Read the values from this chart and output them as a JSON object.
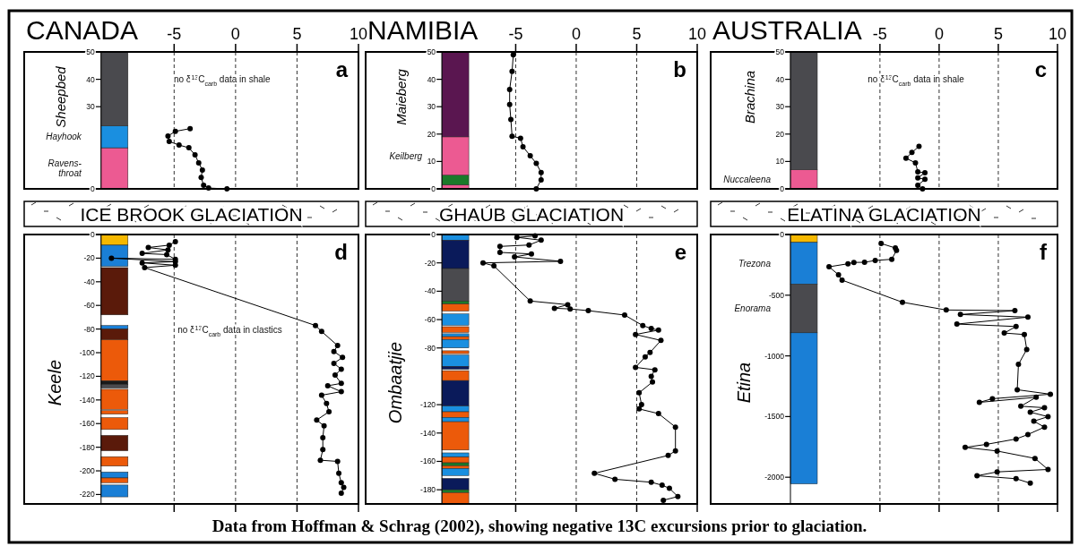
{
  "chart_data": [
    {
      "type": "line",
      "title": "CANADA",
      "ylabel": "Sheepbed",
      "xlim": [
        -17.2,
        10
      ],
      "ylim": [
        0,
        50
      ],
      "xticks": [
        -5,
        0,
        5,
        10
      ],
      "yticks": [
        0,
        30,
        40,
        50
      ],
      "grid": "x",
      "marker": "circle",
      "line_style": "solid",
      "series": [
        {
          "color": "#000000",
          "x": [
            -3.7,
            -4.9,
            -5.5,
            -5.4,
            -4.6,
            -3.8,
            -3.3,
            -3.0,
            -2.7,
            -2.8,
            -2.6,
            -2.2,
            -0.7
          ],
          "values": [
            22,
            21,
            19.3,
            17.3,
            16,
            15,
            12.4,
            9.5,
            6.9,
            4.2,
            1.3,
            0.3,
            0
          ]
        }
      ],
      "bands": [
        {
          "axis": "y",
          "from": 0,
          "to": 15,
          "color": "#ec5a92",
          "label": "Ravens-\nthroat"
        },
        {
          "axis": "y",
          "from": 15,
          "to": 23,
          "color": "#1a8fe0",
          "label": "Hayhook"
        },
        {
          "axis": "y",
          "from": 23,
          "to": 50,
          "color": "#4a4a4e"
        }
      ],
      "annotations": [
        "a",
        "no δ$^{13}$C$_{carb}$ data in shale"
      ]
    },
    {
      "type": "line",
      "title": "NAMIBIA",
      "ylabel": "Maieberg",
      "xlim": [
        -17.4,
        10
      ],
      "ylim": [
        0,
        50
      ],
      "xticks": [
        -5,
        0,
        5,
        10
      ],
      "yticks": [
        0,
        10,
        20,
        30,
        40,
        50
      ],
      "grid": "x",
      "marker": "circle",
      "line_style": "solid",
      "series": [
        {
          "color": "#000000",
          "x": [
            -5.2,
            -5.3,
            -5.5,
            -5.5,
            -5.4,
            -5.3,
            -4.6,
            -4.4,
            -3.8,
            -3.3,
            -2.9,
            -2.9,
            -3.3
          ],
          "values": [
            48.9,
            42.9,
            36.3,
            30.8,
            25.3,
            19.2,
            18.5,
            15.4,
            12.1,
            9.3,
            6,
            3.3,
            0
          ]
        }
      ],
      "bands": [
        {
          "axis": "y",
          "from": 0,
          "to": 1.5,
          "color": "#ec5a92"
        },
        {
          "axis": "y",
          "from": 1.5,
          "to": 5,
          "color": "#1a7a2a"
        },
        {
          "axis": "y",
          "from": 5,
          "to": 19,
          "color": "#ec5a92",
          "label": "Keilberg"
        },
        {
          "axis": "y",
          "from": 19,
          "to": 50,
          "color": "#5a1650"
        }
      ],
      "annotations": [
        "b"
      ]
    },
    {
      "type": "line",
      "title": "AUSTRALIA",
      "ylabel": "Brachina",
      "xlim": [
        -19.3,
        10
      ],
      "ylim": [
        0,
        50
      ],
      "xticks": [
        -5,
        0,
        5,
        10
      ],
      "yticks": [
        0,
        10,
        20,
        30,
        40,
        50
      ],
      "grid": "x",
      "marker": "circle",
      "line_style": "solid",
      "series": [
        {
          "color": "#000000",
          "x": [
            -1.7,
            -2.3,
            -2.8,
            -2.0,
            -1.8,
            -1.2,
            -1.8,
            -1.2,
            -1.8,
            -1.4
          ],
          "values": [
            15.5,
            13.3,
            11.2,
            9.5,
            6.2,
            5.9,
            4,
            3.5,
            1.3,
            0
          ]
        }
      ],
      "bands": [
        {
          "axis": "y",
          "from": 0,
          "to": 7,
          "color": "#ec5a92",
          "label": "Nuccaleena"
        },
        {
          "axis": "y",
          "from": 7,
          "to": 50,
          "color": "#4a4a4e"
        }
      ],
      "annotations": [
        "c",
        "no δ$^{13}$C$_{carb}$ data in shale"
      ]
    },
    {
      "type": "line",
      "title": "ICE BROOK GLACIATION",
      "ylabel": "Keele",
      "xlim": [
        -17.2,
        10
      ],
      "ylim": [
        -228,
        0
      ],
      "xticks": [
        -5,
        0,
        5,
        10
      ],
      "yticks": [
        0,
        -20,
        -40,
        -60,
        -80,
        -100,
        -120,
        -140,
        -160,
        -180,
        -200,
        -220
      ],
      "grid": "x",
      "marker": "circle",
      "line_style": "solid",
      "tick_labels": "y",
      "series": [
        {
          "color": "#000000",
          "x": [
            -4.9,
            -5.4,
            -7.1,
            -5.5,
            -7.6,
            -5.6,
            -4.9,
            -10.1,
            -4.9,
            -7.6,
            -4.9,
            -7.4,
            6.5,
            7.0,
            8.3,
            8.0,
            8.7,
            8.0,
            8.6,
            8.1,
            8.6,
            7.5,
            8.6,
            7.0,
            7.4,
            7.6,
            6.6,
            7.2,
            7.1,
            7.1,
            6.9,
            8.3,
            8.4,
            8.6,
            8.8,
            8.6
          ],
          "values": [
            -6,
            -9,
            -11,
            -13,
            -16,
            -17,
            -21,
            -20,
            -23,
            -24,
            -26,
            -28,
            -77,
            -82,
            -94,
            -99,
            -104,
            -109,
            -114,
            -119,
            -126,
            -128,
            -133,
            -136,
            -143,
            -150,
            -157,
            -162,
            -172,
            -182,
            -191,
            -192,
            -202,
            -210,
            -214,
            -219
          ]
        }
      ],
      "bands": [
        {
          "axis": "y",
          "from": -9,
          "to": 0,
          "color": "#f6b800"
        },
        {
          "axis": "y",
          "from": -27,
          "to": -9,
          "color": "#1a7fd6"
        },
        {
          "axis": "y",
          "from": -68,
          "to": -28,
          "color": "#5a1a0a"
        },
        {
          "axis": "y",
          "from": -80,
          "to": -77,
          "color": "#1a7fd6"
        },
        {
          "axis": "y",
          "from": -89,
          "to": -80,
          "color": "#5a1a0a"
        },
        {
          "axis": "y",
          "from": -124,
          "to": -89,
          "color": "#ec5a0a"
        },
        {
          "axis": "y",
          "from": -127,
          "to": -124,
          "color": "#1a1a1a"
        },
        {
          "axis": "y",
          "from": -130,
          "to": -127,
          "color": "#4a4a4e"
        },
        {
          "axis": "y",
          "from": -148,
          "to": -131,
          "color": "#ec5a0a"
        },
        {
          "axis": "y",
          "from": -152,
          "to": -149,
          "color": "#ec5a0a"
        },
        {
          "axis": "y",
          "from": -165,
          "to": -155,
          "color": "#ec5a0a"
        },
        {
          "axis": "y",
          "from": -183,
          "to": -170,
          "color": "#5a1a0a"
        },
        {
          "axis": "y",
          "from": -196,
          "to": -188,
          "color": "#ec5a0a"
        },
        {
          "axis": "y",
          "from": -206,
          "to": -201,
          "color": "#1a7fd6"
        },
        {
          "axis": "y",
          "from": -210,
          "to": -206,
          "color": "#ec5a0a"
        },
        {
          "axis": "y",
          "from": -222,
          "to": -212,
          "color": "#1a7fd6"
        }
      ],
      "annotations": [
        "d",
        "no δ$^{13}$C$_{carb}$ data in clastics",
        "Data from Hoffman & Schrag (2002), showing negative 13C excursions prior to glaciation."
      ]
    },
    {
      "type": "line",
      "title": "GHAUB GLACIATION",
      "ylabel": "Ombaatjie",
      "xlim": [
        -17.4,
        10
      ],
      "ylim": [
        -190,
        0
      ],
      "xticks": [
        -5,
        0,
        5,
        10
      ],
      "yticks": [
        0,
        -20,
        -40,
        -60,
        -80,
        -120,
        -140,
        -160,
        -180
      ],
      "grid": "x",
      "marker": "circle",
      "line_style": "solid",
      "tick_labels": "y",
      "series": [
        {
          "color": "#000000",
          "x": [
            -3.4,
            -4.9,
            -2.9,
            -3.9,
            -6.3,
            -6.3,
            -3.7,
            -5.1,
            -1.3,
            -7.7,
            -6.8,
            -3.8,
            -0.7,
            -1.8,
            -0.5,
            1.0,
            4.0,
            5.5,
            6.2,
            6.8,
            4.9,
            7.0,
            6.1,
            5.7,
            4.9,
            6.5,
            6.2,
            6.3,
            5.2,
            5.4,
            5.2,
            6.8,
            8.2,
            8.2,
            7.6,
            1.5,
            3.2,
            6.2,
            7.1,
            7.7,
            8.4,
            7.2
          ],
          "values": [
            -1,
            -2,
            -4,
            -7.4,
            -8.4,
            -12.6,
            -13.7,
            -15.8,
            -18.9,
            -20,
            -22.1,
            -46.9,
            -49.5,
            -52,
            -52.5,
            -53.7,
            -56.8,
            -64.2,
            -66.3,
            -67.4,
            -70.5,
            -74.7,
            -83.2,
            -86.3,
            -93.7,
            -95.4,
            -100,
            -104,
            -111.6,
            -120,
            -123,
            -126.3,
            -135.8,
            -152.6,
            -155.8,
            -168.4,
            -172.6,
            -174.7,
            -176.8,
            -179,
            -184.8,
            -187.4
          ]
        }
      ],
      "bands": [
        {
          "axis": "y",
          "from": -4,
          "to": 0,
          "color": "#1a8fe0"
        },
        {
          "axis": "y",
          "from": -24,
          "to": -4,
          "color": "#0a1a5a"
        },
        {
          "axis": "y",
          "from": -47,
          "to": -24,
          "color": "#4a4a4e"
        },
        {
          "axis": "y",
          "from": -49,
          "to": -47,
          "color": "#1a7a2a"
        },
        {
          "axis": "y",
          "from": -54,
          "to": -49,
          "color": "#ec5a0a"
        },
        {
          "axis": "y",
          "from": -64,
          "to": -56,
          "color": "#1a8fe0"
        },
        {
          "axis": "y",
          "from": -69,
          "to": -65,
          "color": "#ec5a0a"
        },
        {
          "axis": "y",
          "from": -72,
          "to": -70,
          "color": "#1a8fe0"
        },
        {
          "axis": "y",
          "from": -74,
          "to": -72,
          "color": "#ec5a0a"
        },
        {
          "axis": "y",
          "from": -80,
          "to": -74,
          "color": "#1a8fe0"
        },
        {
          "axis": "y",
          "from": -84,
          "to": -82,
          "color": "#ec5a0a"
        },
        {
          "axis": "y",
          "from": -93,
          "to": -85,
          "color": "#1a8fe0"
        },
        {
          "axis": "y",
          "from": -95,
          "to": -93,
          "color": "#0a1a5a"
        },
        {
          "axis": "y",
          "from": -103,
          "to": -96,
          "color": "#ec5a0a"
        },
        {
          "axis": "y",
          "from": -121,
          "to": -103,
          "color": "#0a1a5a"
        },
        {
          "axis": "y",
          "from": -125,
          "to": -121,
          "color": "#1a8fe0"
        },
        {
          "axis": "y",
          "from": -129,
          "to": -125,
          "color": "#ec5a0a"
        },
        {
          "axis": "y",
          "from": -132,
          "to": -129,
          "color": "#1a8fe0"
        },
        {
          "axis": "y",
          "from": -152,
          "to": -132,
          "color": "#ec5a0a"
        },
        {
          "axis": "y",
          "from": -157,
          "to": -154,
          "color": "#1a8fe0"
        },
        {
          "axis": "y",
          "from": -161,
          "to": -157,
          "color": "#ec5a0a"
        },
        {
          "axis": "y",
          "from": -163,
          "to": -161,
          "color": "#1a7a2a"
        },
        {
          "axis": "y",
          "from": -165,
          "to": -163,
          "color": "#ec5a0a"
        },
        {
          "axis": "y",
          "from": -170,
          "to": -165,
          "color": "#1a8fe0"
        },
        {
          "axis": "y",
          "from": -180,
          "to": -172,
          "color": "#0a1a5a"
        },
        {
          "axis": "y",
          "from": -182,
          "to": -180,
          "color": "#1a7a2a"
        },
        {
          "axis": "y",
          "from": -190,
          "to": -182,
          "color": "#ec5a0a"
        }
      ],
      "annotations": [
        "e"
      ]
    },
    {
      "type": "line",
      "title": "ELATINA GLACIATION",
      "ylabel": "Etina",
      "xlim": [
        -19.3,
        10
      ],
      "ylim": [
        -2220,
        0
      ],
      "xticks": [
        -5,
        0,
        5,
        10
      ],
      "yticks": [
        0,
        -500,
        -1000,
        -1500,
        -2000
      ],
      "grid": "x",
      "marker": "circle",
      "line_style": "solid",
      "tick_labels": "y",
      "series": [
        {
          "color": "#000000",
          "x": [
            -4.9,
            -3.7,
            -3.6,
            -4.0,
            -5.4,
            -6.3,
            -7.2,
            -7.7,
            -9.3,
            -8.5,
            -8.2,
            -3.1,
            0.6,
            6.4,
            1.8,
            7.5,
            1.5,
            6.5,
            5.5,
            7.2,
            7.4,
            6.7,
            6.6,
            9.4,
            4.5,
            3.4,
            8.2,
            6.9,
            8.9,
            7.7,
            9.2,
            8.0,
            8.9,
            7.5,
            6.5,
            4.0,
            2.2,
            4.9,
            8.1,
            9.2,
            4.9,
            3.2,
            6.5,
            7.7
          ],
          "values": [
            -74,
            -111,
            -130,
            -204,
            -214,
            -229,
            -230,
            -241,
            -266,
            -332,
            -376,
            -558,
            -622,
            -627,
            -659,
            -681,
            -738,
            -758,
            -812,
            -824,
            -947,
            -1070,
            -1279,
            -1316,
            -1353,
            -1383,
            -1341,
            -1415,
            -1427,
            -1464,
            -1501,
            -1538,
            -1587,
            -1648,
            -1685,
            -1729,
            -1754,
            -1784,
            -1845,
            -1936,
            -1956,
            -1988,
            -2012,
            -2049
          ]
        }
      ],
      "bands": [
        {
          "axis": "y",
          "from": -65,
          "to": 0,
          "color": "#f6b800"
        },
        {
          "axis": "y",
          "from": -410,
          "to": -65,
          "color": "#1a7fd6",
          "label": "Trezona"
        },
        {
          "axis": "y",
          "from": -810,
          "to": -410,
          "color": "#4a4a4e",
          "label": "Enorama"
        },
        {
          "axis": "y",
          "from": -2055,
          "to": -810,
          "color": "#1a7fd6"
        }
      ],
      "annotations": [
        "f"
      ]
    }
  ]
}
